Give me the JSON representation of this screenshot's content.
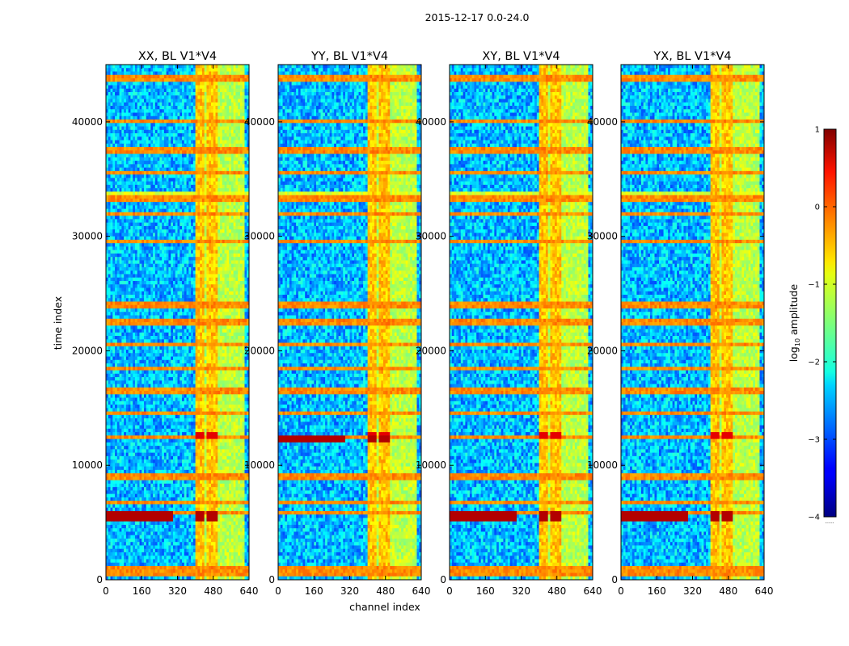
{
  "chart_data": {
    "type": "heatmap",
    "suptitle": "2015-12-17 0.0-24.0",
    "xlabel": "channel index",
    "ylabel": "time index",
    "xlim": [
      0,
      640
    ],
    "ylim": [
      0,
      45000
    ],
    "xticks": [
      0,
      160,
      320,
      480,
      640
    ],
    "yticks": [
      0,
      10000,
      20000,
      30000,
      40000
    ],
    "colorbar": {
      "label_prefix": "log",
      "label_sub": "10",
      "label_suffix": " amplitude",
      "range": [
        -4,
        1
      ],
      "ticks": [
        1,
        0,
        -1,
        -2,
        -3,
        -4
      ],
      "colormap": "jet",
      "footnote": "......"
    },
    "panels": [
      {
        "title": "XX, BL V1*V4",
        "strong_time_band": 5600,
        "bright_channel_bands": [
          [
            405,
            440
          ],
          [
            455,
            500
          ]
        ]
      },
      {
        "title": "YY, BL V1*V4",
        "strong_time_band": 12300,
        "bright_channel_bands": [
          [
            405,
            440
          ],
          [
            455,
            500
          ]
        ]
      },
      {
        "title": "XY, BL V1*V4",
        "strong_time_band": 5600,
        "bright_channel_bands": [
          [
            405,
            440
          ],
          [
            455,
            500
          ]
        ]
      },
      {
        "title": "YX, BL V1*V4",
        "strong_time_band": 5600,
        "bright_channel_bands": [
          [
            405,
            440
          ],
          [
            455,
            500
          ]
        ]
      }
    ],
    "rfi_time_bands": [
      44000,
      43700,
      40000,
      37500,
      35500,
      33300,
      32000,
      29500,
      24000,
      22500,
      20500,
      18500,
      16500,
      14500,
      12500,
      9000,
      6700,
      5900,
      900,
      600
    ],
    "rfi_channel_bands": [
      [
        405,
        410
      ],
      [
        450,
        460
      ],
      [
        510,
        520
      ],
      [
        560,
        575
      ],
      [
        600,
        605
      ]
    ]
  }
}
